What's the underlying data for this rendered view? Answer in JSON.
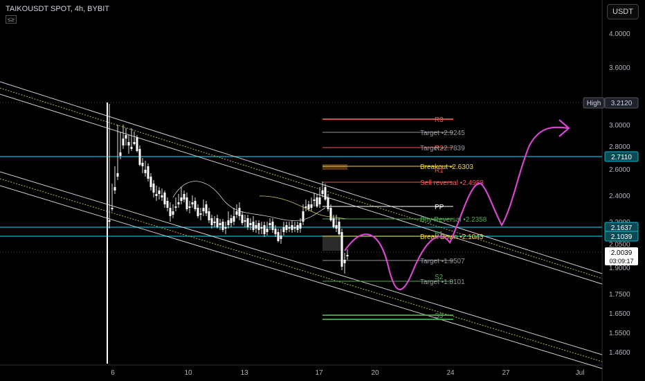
{
  "header": {
    "symbol_line": "TAIKOUSDT SPOT, 4h, BYBIT",
    "badge": "≤≥"
  },
  "currency_button": "USDT",
  "chart_data": {
    "type": "candlestick",
    "title": "TAIKOUSDT SPOT, 4h, BYBIT",
    "x_ticks": [
      "6",
      "10",
      "13",
      "17",
      "20",
      "24",
      "27",
      "Jul"
    ],
    "y_ticks": [
      "4.0000",
      "3.6000",
      "3.0000",
      "2.8000",
      "2.6000",
      "2.4000",
      "2.2000",
      "2.0500",
      "1.9000",
      "1.7500",
      "1.6500",
      "1.5500",
      "1.4600"
    ],
    "price_labels": [
      {
        "label": "High",
        "value": "3.2120"
      },
      {
        "label": "",
        "value": "2.7110"
      },
      {
        "label": "",
        "value": "2.1637"
      },
      {
        "label": "",
        "value": "2.1039"
      },
      {
        "label": "",
        "value": "2.0039",
        "countdown": "03:09:17"
      }
    ],
    "levels": [
      {
        "text": "R3",
        "color": "#f05a5a"
      },
      {
        "text": "Target •2.9245",
        "color": "#9598a1"
      },
      {
        "text": "R2",
        "color": "#f05a5a"
      },
      {
        "text": "Target •2.7839",
        "color": "#9598a1"
      },
      {
        "text": "Breakout  •2.6303",
        "color": "#f2d43d"
      },
      {
        "text": "R1",
        "color": "#f05a5a"
      },
      {
        "text": "Sell reversal •2.4988",
        "color": "#f05a5a"
      },
      {
        "text": "PP",
        "color": "#ffffff"
      },
      {
        "text": "Buy Reversal •2.2358",
        "color": "#4caf50"
      },
      {
        "text": "S1",
        "color": "#4caf50"
      },
      {
        "text": "Break Down  •2.1043",
        "color": "#f2d43d"
      },
      {
        "text": "Target •1.9507",
        "color": "#9598a1"
      },
      {
        "text": "S2",
        "color": "#4caf50"
      },
      {
        "text": "Target •1.8101",
        "color": "#9598a1"
      },
      {
        "text": "S3",
        "color": "#4caf50"
      }
    ],
    "colors": {
      "up": "#ffffff",
      "down": "#ffffff",
      "hline": "#00bcd4",
      "path": "#d946d2",
      "channel": "#cfcfcf",
      "channel_mid": "#b8b84a"
    }
  }
}
